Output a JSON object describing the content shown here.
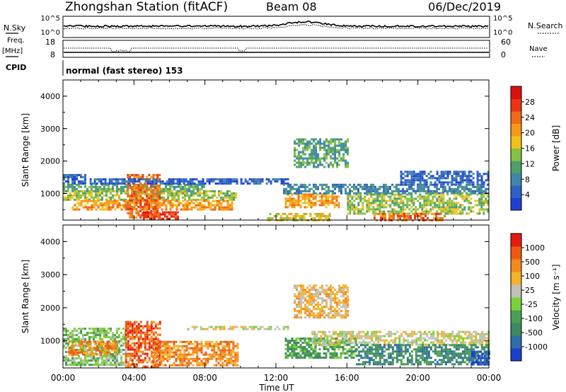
{
  "header": {
    "station": "Zhongshan Station (fitACF)",
    "beam": "Beam 08",
    "date": "06/Dec/2019"
  },
  "top_panels": {
    "nsky_label": "N.Sky",
    "nsearch_label": "N.Search",
    "nsky_ticks": [
      "10^5",
      "10^0"
    ],
    "nsearch_ticks": [
      "10^5",
      "10^0"
    ],
    "freq_label": "Freq.",
    "freq_unit": "[MHz]",
    "freq_ticks": [
      "18",
      "8"
    ],
    "nave_label": "Nave",
    "nave_ticks": [
      "60",
      "0"
    ],
    "cpid_label": "CPID",
    "cpid_text": "normal (fast stereo) 153"
  },
  "chart_data": [
    {
      "type": "heatmap",
      "title": "",
      "xlabel": "Time UT",
      "ylabel": "Slant Range [km]",
      "xlim": [
        0,
        24
      ],
      "ylim": [
        180,
        4500
      ],
      "x_ticks": [
        "00:00",
        "04:00",
        "08:00",
        "12:00",
        "16:00",
        "20:00",
        "00:00"
      ],
      "y_ticks": [
        "1000",
        "2000",
        "3000",
        "4000"
      ],
      "colorbar": {
        "label": "Power [dB]",
        "ticks": [
          "4",
          "8",
          "12",
          "16",
          "20",
          "24",
          "28"
        ],
        "colors": [
          "#1f3fd6",
          "#2f61c4",
          "#3f87a8",
          "#4f9e6a",
          "#86c241",
          "#f2c21b",
          "#f59a18",
          "#ef6a17",
          "#e93312",
          "#dd1010"
        ]
      },
      "regions": [
        {
          "t": [
            0.0,
            1.3
          ],
          "r": [
            1300,
            1600
          ],
          "level": 1
        },
        {
          "t": [
            0.0,
            8.0
          ],
          "r": [
            1100,
            1300
          ],
          "level": 3
        },
        {
          "t": [
            0.0,
            9.8
          ],
          "r": [
            800,
            1100
          ],
          "level": 4
        },
        {
          "t": [
            0.5,
            9.5
          ],
          "r": [
            500,
            800
          ],
          "level": 6
        },
        {
          "t": [
            3.6,
            5.4
          ],
          "r": [
            250,
            1600
          ],
          "level": 7
        },
        {
          "t": [
            4.5,
            6.5
          ],
          "r": [
            200,
            450
          ],
          "level": 8
        },
        {
          "t": [
            1.5,
            12.7
          ],
          "r": [
            1330,
            1470
          ],
          "level": 1
        },
        {
          "t": [
            11.5,
            15.0
          ],
          "r": [
            200,
            400
          ],
          "level": 5
        },
        {
          "t": [
            12.5,
            15.5
          ],
          "r": [
            600,
            1000
          ],
          "level": 6
        },
        {
          "t": [
            13.0,
            16.0
          ],
          "r": [
            1800,
            2700
          ],
          "level": 3
        },
        {
          "t": [
            12.4,
            24.0
          ],
          "r": [
            1000,
            1300
          ],
          "level": 2
        },
        {
          "t": [
            16.0,
            24.0
          ],
          "r": [
            400,
            1000
          ],
          "level": 4
        },
        {
          "t": [
            19.0,
            24.0
          ],
          "r": [
            1300,
            1700
          ],
          "level": 1
        },
        {
          "t": [
            17.5,
            21.5
          ],
          "r": [
            200,
            400
          ],
          "level": 7
        }
      ]
    },
    {
      "type": "heatmap",
      "title": "",
      "xlabel": "Time UT",
      "ylabel": "Slant Range [km]",
      "xlim": [
        0,
        24
      ],
      "ylim": [
        180,
        4500
      ],
      "x_ticks": [
        "00:00",
        "04:00",
        "08:00",
        "12:00",
        "16:00",
        "20:00",
        "00:00"
      ],
      "y_ticks": [
        "1000",
        "2000",
        "3000",
        "4000"
      ],
      "colorbar": {
        "label": "Velocity [m s⁻¹]",
        "ticks": [
          "1000",
          "500",
          "100",
          "25",
          "-25",
          "-100",
          "-500",
          "-1000"
        ],
        "colors": [
          "#1b3fce",
          "#2f6da8",
          "#3c8a62",
          "#4c9e55",
          "#7cd13a",
          "#c0c0b8",
          "#f4b229",
          "#f28a1c",
          "#ee5a12",
          "#e51a0e"
        ]
      },
      "regions": [
        {
          "t": [
            0.0,
            3.5
          ],
          "r": [
            300,
            1400
          ],
          "level": 4
        },
        {
          "t": [
            0.3,
            3.0
          ],
          "r": [
            600,
            1000
          ],
          "level": 7
        },
        {
          "t": [
            3.5,
            5.5
          ],
          "r": [
            250,
            1600
          ],
          "level": 8
        },
        {
          "t": [
            5.0,
            9.8
          ],
          "r": [
            250,
            1000
          ],
          "level": 7
        },
        {
          "t": [
            7.0,
            12.7
          ],
          "r": [
            1350,
            1450
          ],
          "level": 5
        },
        {
          "t": [
            13.0,
            16.0
          ],
          "r": [
            1700,
            2700
          ],
          "level": 6
        },
        {
          "t": [
            12.5,
            16.5
          ],
          "r": [
            500,
            1100
          ],
          "level": 3
        },
        {
          "t": [
            14.0,
            24.0
          ],
          "r": [
            900,
            1300
          ],
          "level": 5
        },
        {
          "t": [
            16.5,
            24.0
          ],
          "r": [
            300,
            900
          ],
          "level": 2
        },
        {
          "t": [
            23.0,
            24.0
          ],
          "r": [
            300,
            700
          ],
          "level": 0
        }
      ]
    }
  ],
  "colors": {
    "frame": "#000000",
    "background": "#ffffff"
  }
}
